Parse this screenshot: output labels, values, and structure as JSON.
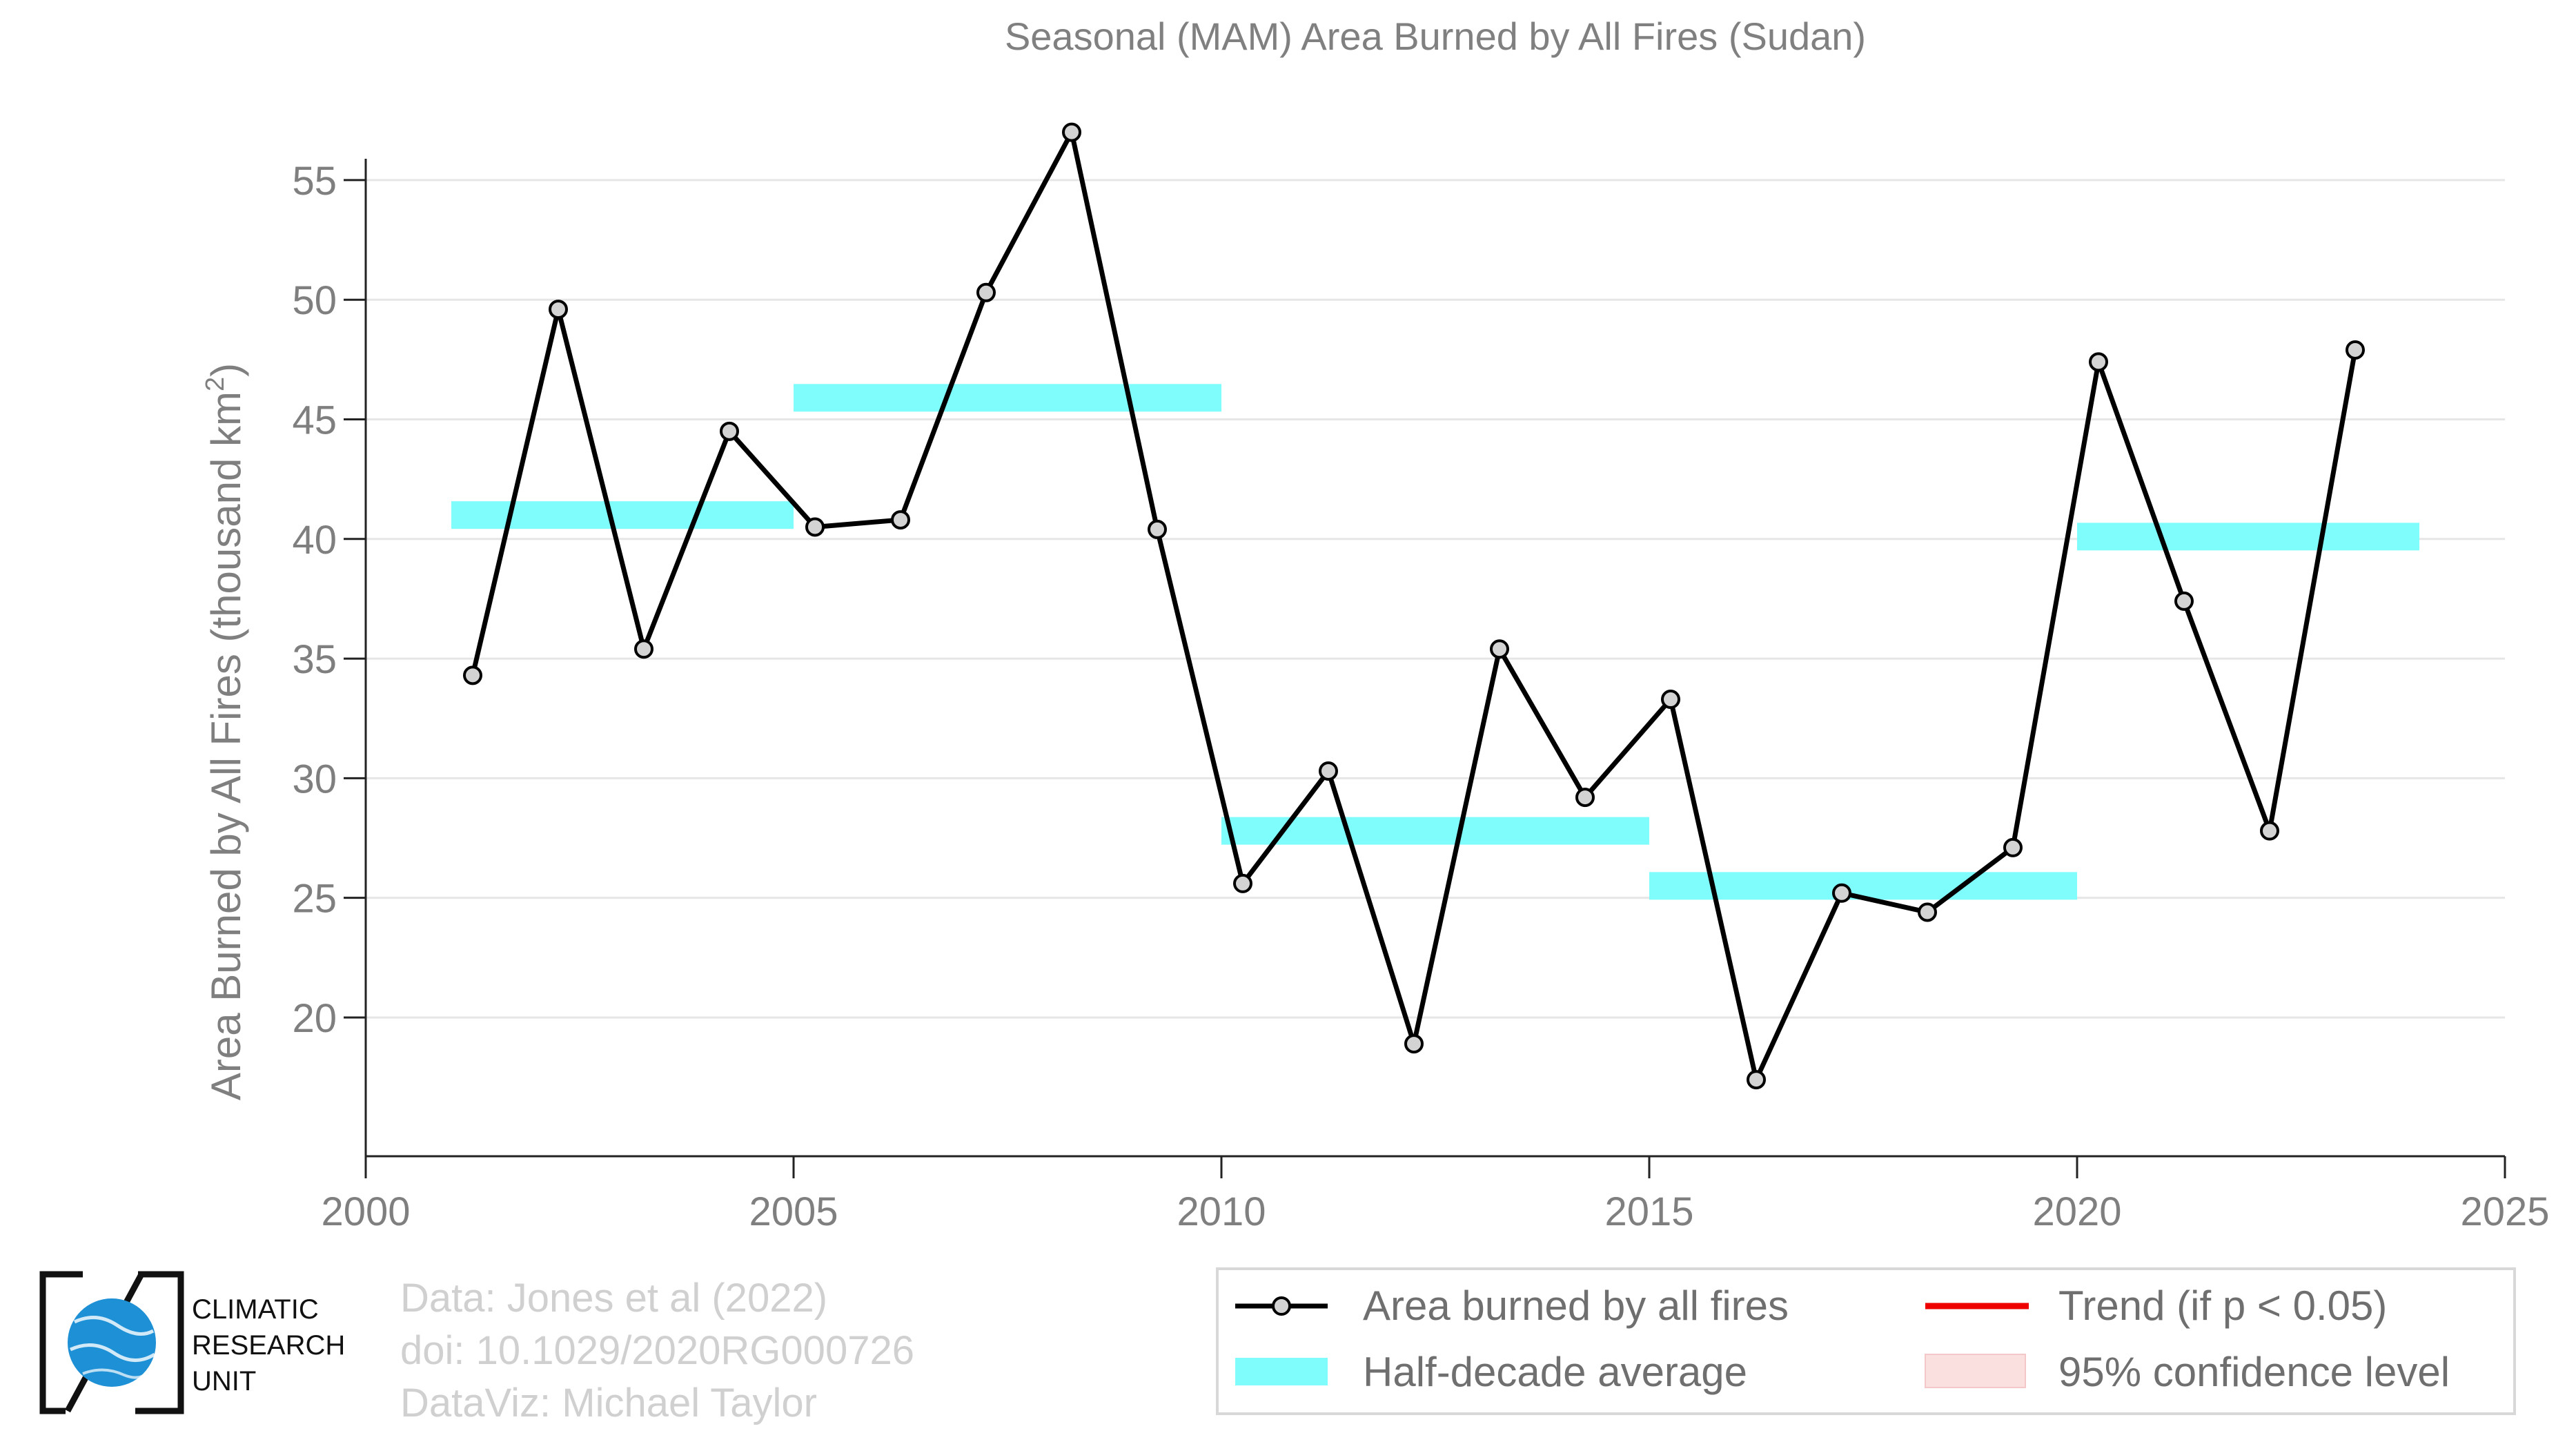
{
  "chart_data": {
    "type": "line",
    "title": "Seasonal (MAM) Area Burned by All Fires (Sudan)",
    "xlabel": "",
    "ylabel": "Area Burned by All Fires (thousand km²)",
    "ylabel_main": "Area Burned by All Fires (thousand km",
    "ylabel_sup": "2",
    "ylabel_close": ")",
    "xlim": [
      2000,
      2025
    ],
    "ylim": [
      14.2,
      58.2
    ],
    "x_ticks": [
      2000,
      2005,
      2010,
      2015,
      2020,
      2025
    ],
    "y_ticks": [
      20,
      25,
      30,
      35,
      40,
      45,
      50,
      55
    ],
    "grid": "horizontal",
    "legend_position": "bottom-right",
    "series": [
      {
        "name": "Area burned by all fires",
        "color": "#000000",
        "marker_fill": "#d3d3d3",
        "x": [
          2001.25,
          2002.25,
          2003.25,
          2004.25,
          2005.25,
          2006.25,
          2007.25,
          2008.25,
          2009.25,
          2010.25,
          2011.25,
          2012.25,
          2013.25,
          2014.25,
          2015.25,
          2016.25,
          2017.25,
          2018.25,
          2019.25,
          2020.25,
          2021.25,
          2022.25,
          2023.25
        ],
        "values": [
          34.3,
          49.6,
          35.4,
          44.5,
          40.5,
          40.8,
          50.3,
          57.0,
          40.4,
          25.6,
          30.3,
          18.9,
          35.4,
          29.2,
          33.3,
          17.4,
          25.2,
          24.4,
          27.1,
          47.4,
          37.4,
          27.8,
          47.9
        ]
      }
    ],
    "half_decade_average": {
      "name": "Half-decade average",
      "color": "#7ffcfc",
      "segments": [
        {
          "x_start": 2001,
          "x_end": 2005,
          "value": 41.0
        },
        {
          "x_start": 2005,
          "x_end": 2010,
          "value": 45.9
        },
        {
          "x_start": 2010,
          "x_end": 2015,
          "value": 27.8
        },
        {
          "x_start": 2015,
          "x_end": 2020,
          "value": 25.5
        },
        {
          "x_start": 2020,
          "x_end": 2024,
          "value": 40.1
        }
      ]
    },
    "legend": [
      {
        "label": "Area burned by all fires",
        "symbol": "line-marker"
      },
      {
        "label": "Trend (if p < 0.05)",
        "symbol": "line-red"
      },
      {
        "label": "Half-decade average",
        "symbol": "bar-cyan"
      },
      {
        "label": "95% confidence level",
        "symbol": "bar-pink"
      }
    ],
    "colors": {
      "trend": "#ee0000",
      "confidence": "#fbe0e0",
      "axis": "#222222",
      "grid": "#e6e6e6"
    }
  },
  "credits": {
    "line1": "Data: Jones et al (2022)",
    "line2": "doi: 10.1029/2020RG000726",
    "line3": "DataViz: Michael Taylor"
  },
  "logo": {
    "line1": "CLIMATIC",
    "line2": "RESEARCH",
    "line3": "UNIT"
  }
}
